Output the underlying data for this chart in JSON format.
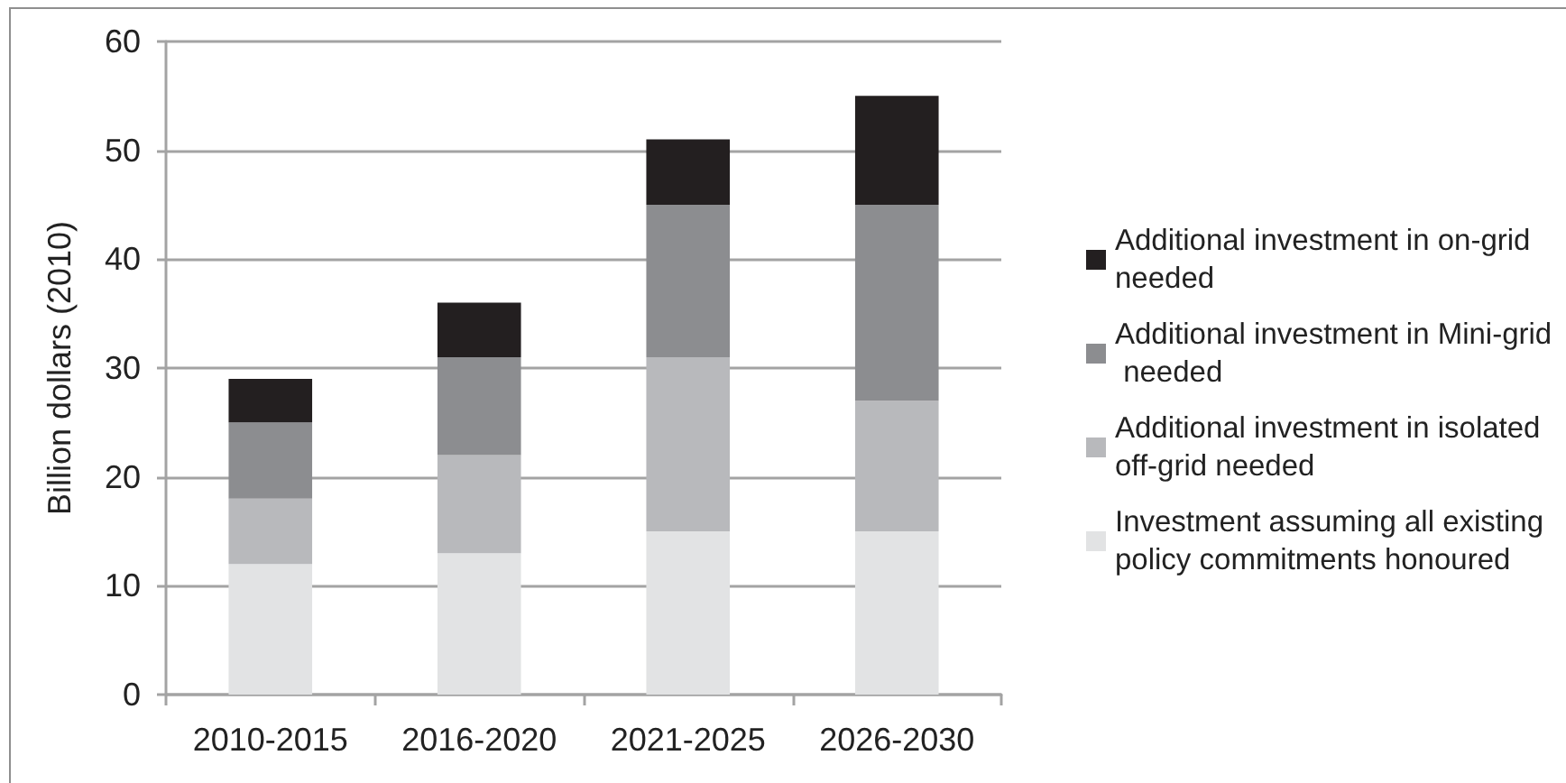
{
  "chart_data": {
    "type": "bar",
    "stacked": true,
    "ylabel": "Billion dollars (2010)",
    "categories": [
      "2010-2015",
      "2016-2020",
      "2021-2025",
      "2026-2030"
    ],
    "series": [
      {
        "name": "Investment assuming all existing policy commitments honoured",
        "color": "#e2e3e4",
        "values": [
          12,
          13,
          15,
          15
        ]
      },
      {
        "name": "Additional investment in isolated off-grid needed",
        "color": "#b8b9bc",
        "values": [
          6,
          9,
          16,
          12
        ]
      },
      {
        "name": "Additional investment in Mini-grid needed",
        "color": "#8c8d90",
        "values": [
          7,
          9,
          14,
          18
        ]
      },
      {
        "name": "Additional investment in on-grid needed",
        "color": "#231f20",
        "values": [
          4,
          5,
          6,
          10
        ]
      }
    ],
    "ylim": [
      0,
      60
    ],
    "yticks": [
      0,
      10,
      20,
      30,
      40,
      50,
      60
    ],
    "grid": "y",
    "legend": "right"
  }
}
